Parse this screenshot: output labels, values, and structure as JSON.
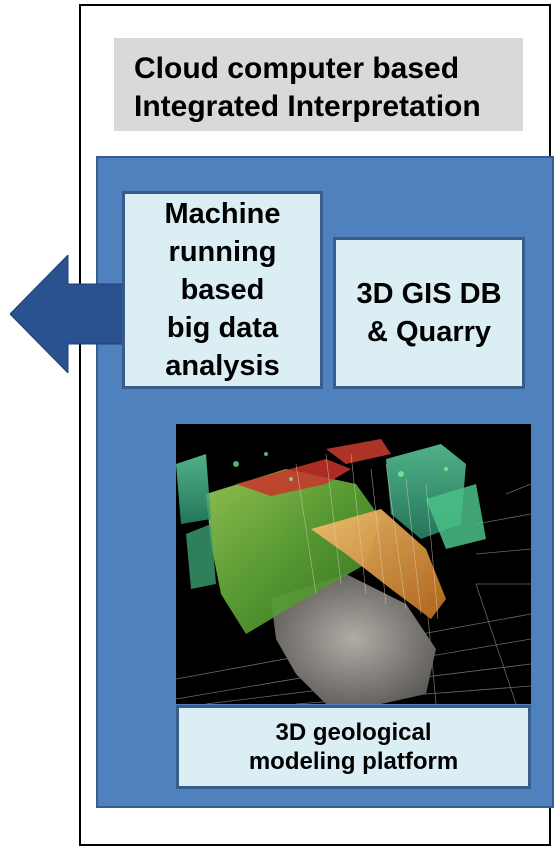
{
  "title": {
    "line1": "Cloud computer based",
    "line2": "Integrated Interpretation"
  },
  "cards": {
    "ml_analysis": {
      "lines": [
        "Machine",
        "running",
        "based",
        "big data",
        "analysis"
      ]
    },
    "gis_db": {
      "lines": [
        "3D GIS DB",
        "& Quarry"
      ]
    },
    "geo_platform": {
      "lines": [
        "3D geological",
        "modeling platform"
      ]
    }
  },
  "colors": {
    "panel_fill": "#4e81bd",
    "panel_border": "#385d8a",
    "card_fill": "#dbeef4",
    "title_fill": "#d9d9d9",
    "arrow_fill": "#2a5290"
  },
  "icons": {
    "arrow": "left-arrow",
    "render": "3d-geological-model-render"
  }
}
